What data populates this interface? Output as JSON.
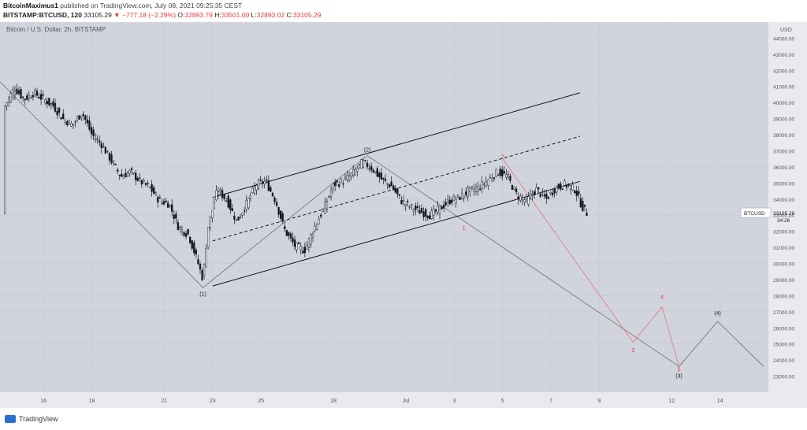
{
  "header": {
    "author": "BitcoinMaximus1",
    "published_text": "published on TradingView.com, July 08, 2021 09:25:35 CEST",
    "symbol_interval": "BITSTAMP:BTCUSD, 120",
    "last": "33105.29",
    "change_arrow": "▼",
    "change": "−777.18 (−2.29%)",
    "open_label": "O:",
    "open": "32893.79",
    "high_label": "H:",
    "high": "33501.00",
    "low_label": "L:",
    "low": "32893.02",
    "close_label": "C:",
    "close": "33105.29"
  },
  "chart_title": "Bitcoin / U.S. Dollar, 2h, BITSTAMP",
  "colors": {
    "plot_bg": "#d1d4dc",
    "axis_bg": "#e9eaee",
    "candle": "#131722",
    "channel": "#131722",
    "wave_black": "#707070",
    "wave_red": "#e57373",
    "red_label": "#e53935",
    "price_tag_bg": "#ffffff"
  },
  "chart_data": {
    "type": "line",
    "title": "Bitcoin / U.S. Dollar, 2h, BITSTAMP",
    "ylabel": "USD",
    "ylim": [
      22000,
      45000
    ],
    "y_ticks": [
      23000,
      24000,
      25000,
      26000,
      27000,
      28000,
      29000,
      30000,
      31000,
      32000,
      33000,
      34000,
      35000,
      36000,
      37000,
      38000,
      39000,
      40000,
      41000,
      42000,
      43000,
      44000
    ],
    "x_ticks": [
      {
        "label": "16",
        "day": 16
      },
      {
        "label": "18",
        "day": 18
      },
      {
        "label": "21",
        "day": 21
      },
      {
        "label": "23",
        "day": 23
      },
      {
        "label": "25",
        "day": 25
      },
      {
        "label": "28",
        "day": 28
      },
      {
        "label": "Jul",
        "day": 31
      },
      {
        "label": "3",
        "day": 33
      },
      {
        "label": "5",
        "day": 35
      },
      {
        "label": "7",
        "day": 37
      },
      {
        "label": "9",
        "day": 39
      },
      {
        "label": "12",
        "day": 42
      },
      {
        "label": "14",
        "day": 44
      }
    ],
    "series": [
      {
        "values": [
          [
            14.4,
            39800
          ],
          [
            14.8,
            40900
          ],
          [
            15.2,
            40200
          ],
          [
            15.6,
            40600
          ],
          [
            16.0,
            40200
          ],
          [
            16.4,
            39800
          ],
          [
            16.8,
            39000
          ],
          [
            17.2,
            38600
          ],
          [
            17.6,
            39400
          ],
          [
            18.0,
            38000
          ],
          [
            18.4,
            37400
          ],
          [
            18.8,
            36400
          ],
          [
            19.2,
            35400
          ],
          [
            19.6,
            35700
          ],
          [
            20.0,
            35100
          ],
          [
            20.4,
            34700
          ],
          [
            20.8,
            33900
          ],
          [
            21.2,
            33700
          ],
          [
            21.6,
            32200
          ],
          [
            22.0,
            31800
          ],
          [
            22.4,
            30000
          ],
          [
            22.6,
            29000
          ],
          [
            22.8,
            32200
          ],
          [
            23.2,
            34600
          ],
          [
            23.6,
            33900
          ],
          [
            24.0,
            32600
          ],
          [
            24.4,
            33700
          ],
          [
            24.8,
            34900
          ],
          [
            25.2,
            35100
          ],
          [
            25.6,
            33900
          ],
          [
            26.0,
            32000
          ],
          [
            26.4,
            31100
          ],
          [
            26.8,
            30800
          ],
          [
            27.2,
            32200
          ],
          [
            27.6,
            33400
          ],
          [
            28.0,
            34900
          ],
          [
            28.4,
            35100
          ],
          [
            28.8,
            35600
          ],
          [
            29.2,
            36300
          ],
          [
            29.6,
            35900
          ],
          [
            30.0,
            35200
          ],
          [
            30.4,
            34800
          ],
          [
            30.8,
            33900
          ],
          [
            31.2,
            33500
          ],
          [
            31.6,
            33200
          ],
          [
            32.0,
            33000
          ],
          [
            32.4,
            33400
          ],
          [
            32.8,
            33900
          ],
          [
            33.2,
            34100
          ],
          [
            33.6,
            34500
          ],
          [
            34.0,
            34700
          ],
          [
            34.4,
            35200
          ],
          [
            34.8,
            35700
          ],
          [
            35.2,
            35400
          ],
          [
            35.6,
            34200
          ],
          [
            36.0,
            33900
          ],
          [
            36.4,
            34600
          ],
          [
            36.8,
            34000
          ],
          [
            37.2,
            34700
          ],
          [
            37.6,
            34900
          ],
          [
            38.0,
            34600
          ],
          [
            38.3,
            33500
          ],
          [
            38.5,
            33105.29
          ]
        ]
      }
    ],
    "channel": {
      "upper": [
        [
          23.0,
          34100
        ],
        [
          38.2,
          40600
        ]
      ],
      "middle": [
        [
          23.0,
          31400
        ],
        [
          38.2,
          37900
        ]
      ],
      "lower": [
        [
          23.0,
          28600
        ],
        [
          38.2,
          35100
        ]
      ]
    },
    "wave_projection_black": [
      [
        14.2,
        41300
      ],
      [
        22.6,
        28500
      ],
      [
        29.4,
        36700
      ],
      [
        42.3,
        23600
      ],
      [
        43.9,
        26400
      ],
      [
        45.8,
        23600
      ]
    ],
    "wave_projection_red": [
      [
        35.0,
        36500
      ],
      [
        40.4,
        25100
      ],
      [
        41.6,
        27300
      ],
      [
        42.3,
        23600
      ]
    ],
    "annotations": [
      {
        "text": "(1)",
        "x": 22.6,
        "y": 28000,
        "color": "black"
      },
      {
        "text": "(2)",
        "x": 29.4,
        "y": 36950,
        "color": "black"
      },
      {
        "text": "1",
        "x": 33.4,
        "y": 32100,
        "color": "red"
      },
      {
        "text": "2",
        "x": 35.0,
        "y": 36500,
        "color": "red"
      },
      {
        "text": "3",
        "x": 40.4,
        "y": 24500,
        "color": "red"
      },
      {
        "text": "4",
        "x": 41.6,
        "y": 27800,
        "color": "red"
      },
      {
        "text": "5",
        "x": 42.3,
        "y": 23300,
        "color": "red"
      },
      {
        "text": "(3)",
        "x": 42.3,
        "y": 22900,
        "color": "black"
      },
      {
        "text": "(4)",
        "x": 43.9,
        "y": 26800,
        "color": "black"
      }
    ],
    "price_tag": {
      "symbol": "BTCUSD",
      "price": "33105.29",
      "countdown": "34:26"
    }
  },
  "footer": {
    "brand": "TradingView"
  }
}
